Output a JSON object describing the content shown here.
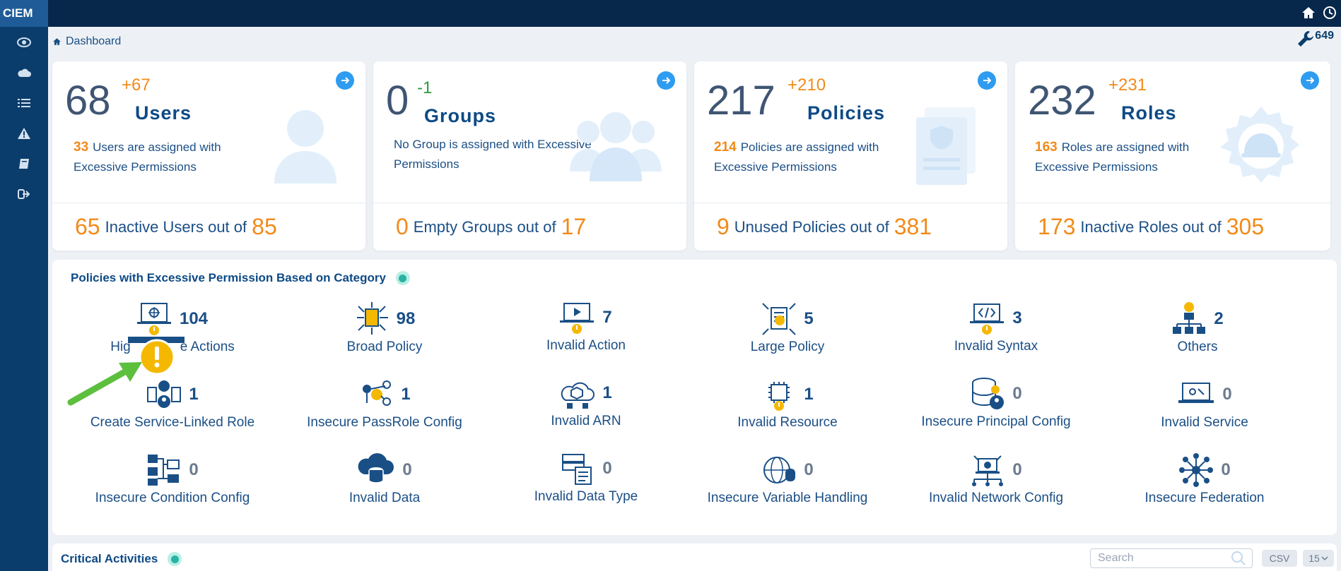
{
  "app": {
    "brand": "CIEM"
  },
  "breadcrumb": {
    "label": "Dashboard"
  },
  "tool": {
    "count": "649"
  },
  "cards": [
    {
      "count": "68",
      "delta": "+67",
      "title": "Users",
      "excess_count": "33",
      "excess_text": "Users are assigned with Excessive Permissions",
      "bottom_value": "65",
      "bottom_label": "Inactive Users out of",
      "bottom_total": "85"
    },
    {
      "count": "0",
      "delta": "-1",
      "title": "Groups",
      "excess_count": "",
      "excess_text": "No Group is assigned with Excessive Permissions",
      "bottom_value": "0",
      "bottom_label": "Empty Groups out of",
      "bottom_total": "17"
    },
    {
      "count": "217",
      "delta": "+210",
      "title": "Policies",
      "excess_count": "214",
      "excess_text": "Policies are assigned with Excessive Permissions",
      "bottom_value": "9",
      "bottom_label": "Unused Policies out of",
      "bottom_total": "381"
    },
    {
      "count": "232",
      "delta": "+231",
      "title": "Roles",
      "excess_count": "163",
      "excess_text": "Roles are assigned with Excessive Permissions",
      "bottom_value": "173",
      "bottom_label": "Inactive Roles out of",
      "bottom_total": "305"
    }
  ],
  "policies_panel": {
    "title": "Policies with Excessive Permission Based on Category",
    "categories": [
      {
        "count": "104",
        "label": "Hig"
      },
      {
        "count": "98",
        "label": "Broad Policy"
      },
      {
        "count": "7",
        "label": "Invalid Action"
      },
      {
        "count": "5",
        "label": "Large Policy"
      },
      {
        "count": "3",
        "label": "Invalid Syntax"
      },
      {
        "count": "2",
        "label": "Others"
      },
      {
        "count": "1",
        "label": "Create Service-Linked Role"
      },
      {
        "count": "1",
        "label": "Insecure PassRole Config"
      },
      {
        "count": "1",
        "label": "Invalid ARN"
      },
      {
        "count": "1",
        "label": "Invalid Resource"
      },
      {
        "count": "0",
        "label": "Insecure Principal Config"
      },
      {
        "count": "0",
        "label": "Invalid Service"
      },
      {
        "count": "0",
        "label": "Insecure Condition Config"
      },
      {
        "count": "0",
        "label": "Invalid Data"
      },
      {
        "count": "0",
        "label": "Invalid Data Type"
      },
      {
        "count": "0",
        "label": "Insecure Variable Handling"
      },
      {
        "count": "0",
        "label": "Invalid Network Config"
      },
      {
        "count": "0",
        "label": "Insecure Federation"
      }
    ],
    "first_label_tail": "e Actions"
  },
  "critical": {
    "title": "Critical Activities",
    "search_placeholder": "Search",
    "csv_label": "CSV",
    "page_size": "15"
  },
  "colors": {
    "accent": "#0d4a86",
    "orange": "#f28a1a",
    "green": "#2e9a3a",
    "sidebar": "#0a3d6b"
  }
}
